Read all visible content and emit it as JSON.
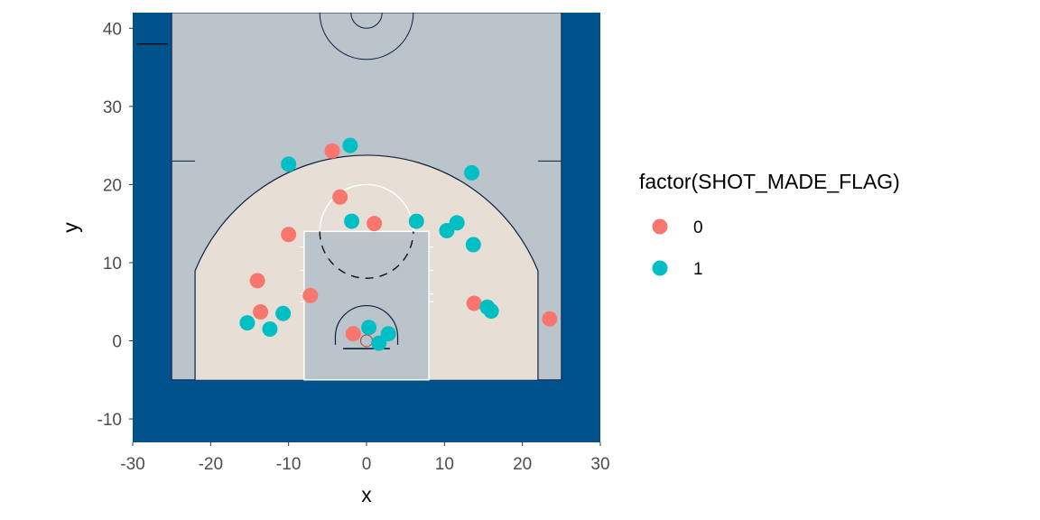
{
  "chart_data": {
    "type": "scatter",
    "title": "",
    "xlabel": "x",
    "ylabel": "y",
    "xlim": [
      -30,
      30
    ],
    "ylim": [
      -13,
      42
    ],
    "x_ticks": [
      -30,
      -20,
      -10,
      0,
      10,
      20,
      30
    ],
    "x_tick_labels": [
      "-30",
      "-20",
      "-10",
      "0",
      "10",
      "20",
      "30"
    ],
    "y_ticks": [
      -10,
      0,
      10,
      20,
      30,
      40
    ],
    "y_tick_labels": [
      "-10",
      "0",
      "10",
      "20",
      "30",
      "40"
    ],
    "grid": false,
    "legend": {
      "title": "factor(SHOT_MADE_FLAG)",
      "position": "right",
      "entries": [
        {
          "label": "0",
          "color": "#F8766D"
        },
        {
          "label": "1",
          "color": "#00BFC4"
        }
      ]
    },
    "colors": {
      "outer_background": "#00528C",
      "court_floor": "#BAC4CA",
      "paint_inside_arc": "#E7DED6",
      "court_lines": "#0E2040",
      "key_lines": "#FFFFFF"
    },
    "series": [
      {
        "name": "0",
        "color": "#F8766D",
        "points": [
          {
            "x": -4.4,
            "y": 24.3
          },
          {
            "x": -3.4,
            "y": 18.4
          },
          {
            "x": 1.0,
            "y": 15.0
          },
          {
            "x": -10.0,
            "y": 13.6
          },
          {
            "x": -14.0,
            "y": 7.7
          },
          {
            "x": -7.2,
            "y": 5.8
          },
          {
            "x": -13.6,
            "y": 3.7
          },
          {
            "x": -1.7,
            "y": 0.9
          },
          {
            "x": 13.8,
            "y": 4.8
          },
          {
            "x": 23.5,
            "y": 2.8
          }
        ]
      },
      {
        "name": "1",
        "color": "#00BFC4",
        "points": [
          {
            "x": -2.1,
            "y": 25.0
          },
          {
            "x": -10.0,
            "y": 22.6
          },
          {
            "x": 13.5,
            "y": 21.5
          },
          {
            "x": -1.9,
            "y": 15.3
          },
          {
            "x": 6.4,
            "y": 15.3
          },
          {
            "x": 11.6,
            "y": 15.1
          },
          {
            "x": 10.3,
            "y": 14.1
          },
          {
            "x": 13.7,
            "y": 12.3
          },
          {
            "x": -10.7,
            "y": 3.5
          },
          {
            "x": -15.3,
            "y": 2.3
          },
          {
            "x": -12.4,
            "y": 1.5
          },
          {
            "x": 0.3,
            "y": 1.7
          },
          {
            "x": 2.8,
            "y": 0.9
          },
          {
            "x": 1.6,
            "y": -0.3
          },
          {
            "x": 15.5,
            "y": 4.3
          },
          {
            "x": 16.0,
            "y": 3.8
          }
        ]
      }
    ]
  }
}
